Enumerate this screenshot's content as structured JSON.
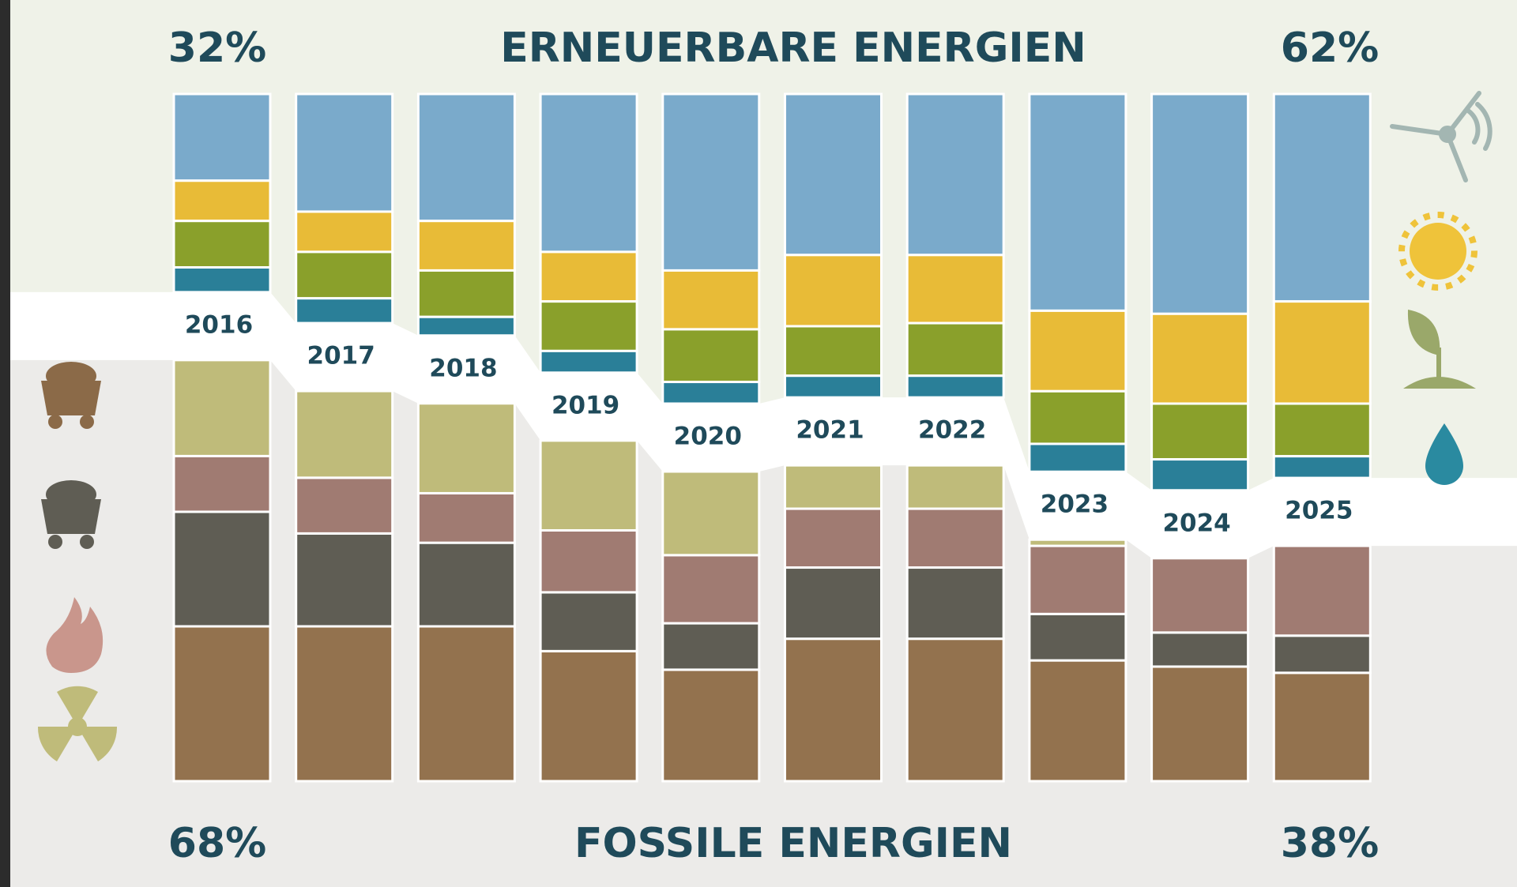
{
  "chart_data": {
    "type": "bar",
    "title": "ERNEUERBARE ENERGIEN",
    "subtitle": "FOSSILE ENERGIEN",
    "annotations": {
      "renewable_first": "32%",
      "renewable_last": "62%",
      "fossil_first": "68%",
      "fossil_last": "38%"
    },
    "categories": [
      "2016",
      "2017",
      "2018",
      "2019",
      "2020",
      "2021",
      "2022",
      "2023",
      "2024",
      "2025"
    ],
    "renewable_series": [
      {
        "color": "#7aaacb",
        "values": [
          14,
          19,
          20.5,
          25.5,
          28.5,
          26,
          26,
          35,
          35.5,
          33.5
        ]
      },
      {
        "color": "#e8bb37",
        "values": [
          6.5,
          6.5,
          8,
          8,
          9.5,
          11.5,
          11,
          13,
          14.5,
          16.5
        ]
      },
      {
        "color": "#8aa02b",
        "values": [
          7.5,
          7.5,
          7.5,
          8,
          8.5,
          8,
          8.5,
          8.5,
          9,
          8.5
        ]
      },
      {
        "color": "#2a7f98",
        "values": [
          4,
          4,
          3,
          3.5,
          3.5,
          3.5,
          3.5,
          4.5,
          5,
          3.5
        ]
      }
    ],
    "fossil_series": [
      {
        "color": "#93724e",
        "values": [
          25,
          25,
          25,
          21,
          18,
          23,
          23,
          19.5,
          18.5,
          17.5
        ]
      },
      {
        "color": "#5f5d54",
        "values": [
          18.5,
          15,
          13.5,
          9.5,
          7.5,
          11.5,
          11.5,
          7.5,
          5.5,
          6
        ]
      },
      {
        "color": "#a07b72",
        "values": [
          9,
          9,
          8,
          10,
          11,
          9.5,
          9.5,
          11,
          12,
          14.5
        ]
      },
      {
        "color": "#bfbb7a",
        "values": [
          15.5,
          14,
          14.5,
          14.5,
          13.5,
          7,
          7,
          1,
          0,
          0
        ]
      }
    ]
  }
}
